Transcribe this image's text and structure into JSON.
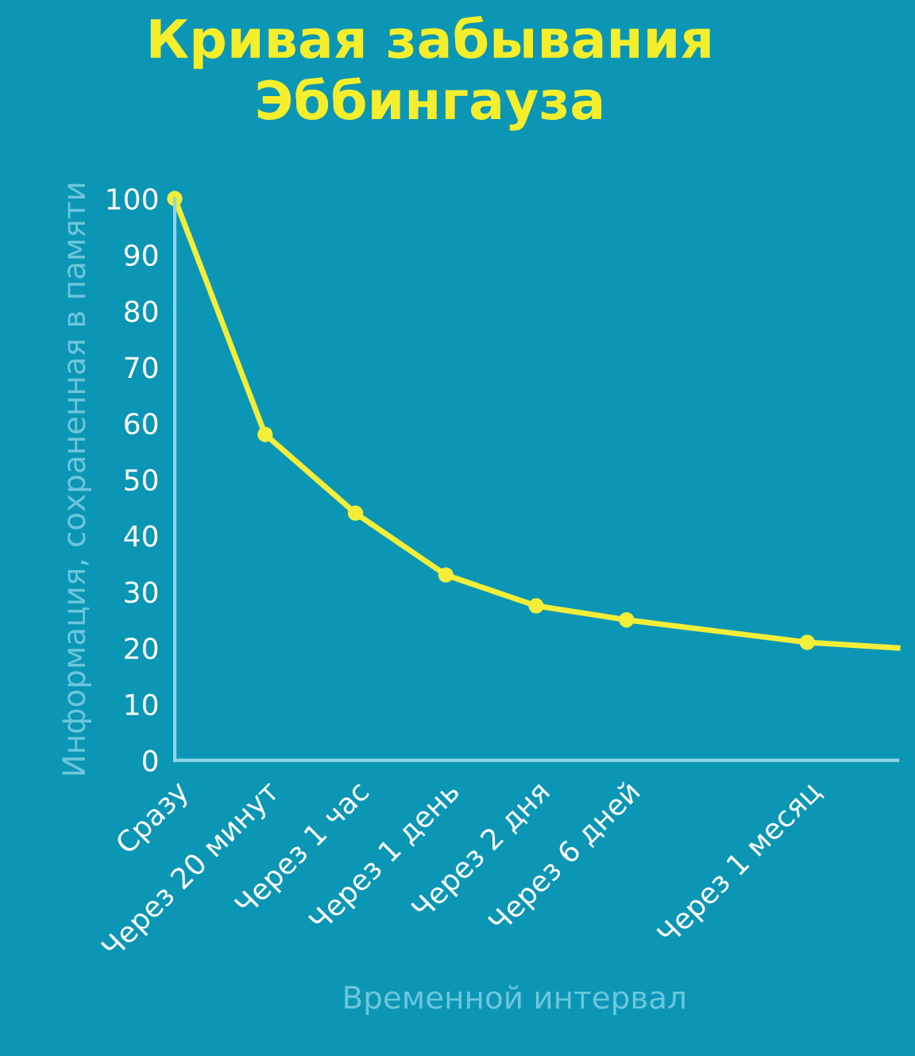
{
  "chart_data": {
    "type": "line",
    "title": "Кривая забывания\nЭббингауза",
    "xlabel": "Временной интервал",
    "ylabel": "Информация, сохраненная в памяти",
    "categories": [
      "Сразу",
      "Через 20 минут",
      "Через 1 час",
      "Через 1 день",
      "Через 2 дня",
      "Через 6 дней",
      null,
      "Через 1 месяц",
      null
    ],
    "series": [
      {
        "color": "#f2ee3a",
        "values": [
          100,
          58,
          44,
          33,
          27.5,
          25,
          23,
          21,
          20
        ]
      }
    ],
    "ylim": [
      0,
      100
    ],
    "yticks": [
      0,
      10,
      20,
      30,
      40,
      50,
      60,
      70,
      80,
      90,
      100
    ],
    "grid": false,
    "legend": false,
    "marker": "circle",
    "line_style": "solid"
  }
}
